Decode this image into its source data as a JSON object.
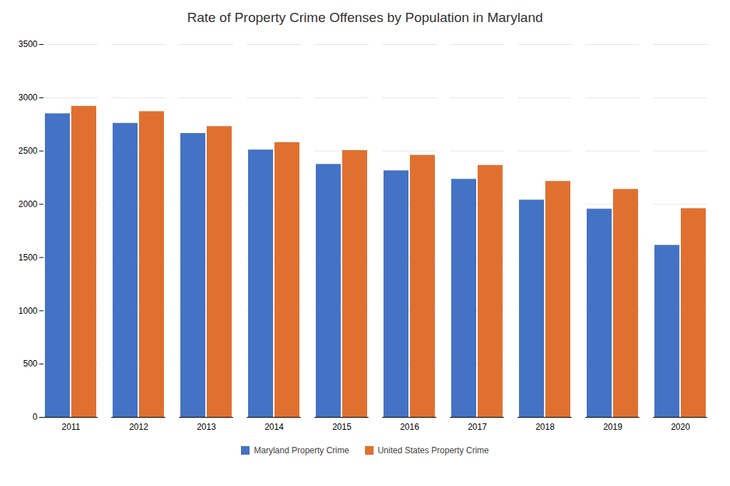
{
  "chart_data": {
    "type": "bar",
    "title": "Rate of Property Crime Offenses by Population in Maryland",
    "categories": [
      "2011",
      "2012",
      "2013",
      "2014",
      "2015",
      "2016",
      "2017",
      "2018",
      "2019",
      "2020"
    ],
    "series": [
      {
        "name": "Maryland Property Crime",
        "color": "#4472C4",
        "values": [
          2850,
          2760,
          2665,
          2510,
          2375,
          2315,
          2235,
          2040,
          1955,
          1615
        ]
      },
      {
        "name": "United States Property Crime",
        "color": "#E07030",
        "values": [
          2920,
          2870,
          2730,
          2580,
          2505,
          2460,
          2365,
          2215,
          2140,
          1960
        ]
      }
    ],
    "ylim": [
      0,
      3500
    ],
    "yticks": [
      0,
      500,
      1000,
      1500,
      2000,
      2500,
      3000,
      3500
    ],
    "grid": true,
    "legend": "bottom"
  }
}
